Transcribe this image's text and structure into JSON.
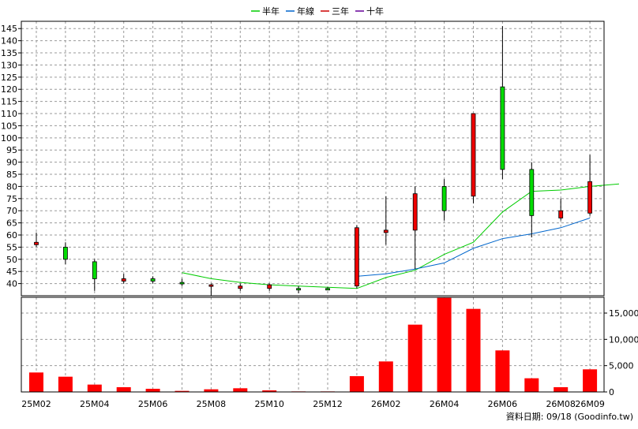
{
  "chart_data": {
    "type": "candlestick",
    "legend": [
      {
        "name": "半年",
        "color": "#00cc00"
      },
      {
        "name": "年線",
        "color": "#0066cc"
      },
      {
        "name": "三年",
        "color": "#cc0000"
      },
      {
        "name": "十年",
        "color": "#660099"
      }
    ],
    "legend_position": "top",
    "x_tick_labels": [
      "25M02",
      "25M04",
      "25M06",
      "25M08",
      "25M10",
      "25M12",
      "26M02",
      "26M04",
      "26M06",
      "26M08",
      "26M09"
    ],
    "price_axis": {
      "position": "left",
      "ticks": [
        "145",
        "140",
        "135",
        "130",
        "125",
        "120",
        "115",
        "110",
        "105",
        "100",
        "95",
        "90",
        "85",
        "80",
        "75",
        "70",
        "65",
        "60",
        "55",
        "50",
        "45",
        "40"
      ],
      "range": [
        35,
        148
      ]
    },
    "volume_axis": {
      "position": "right",
      "ticks": [
        "15,000",
        "10,000",
        "5,000",
        "0"
      ],
      "range": [
        0,
        18000
      ]
    },
    "candles": [
      {
        "period": "25M02",
        "open": 57,
        "close": 56,
        "high": 61,
        "low": 55
      },
      {
        "period": "25M03",
        "open": 50,
        "close": 55,
        "high": 57,
        "low": 48
      },
      {
        "period": "25M04",
        "open": 42,
        "close": 49,
        "high": 50,
        "low": 37
      },
      {
        "period": "25M05",
        "open": 42,
        "close": 41,
        "high": 44,
        "low": 40
      },
      {
        "period": "25M06",
        "open": 41,
        "close": 42,
        "high": 43,
        "low": 40
      },
      {
        "period": "25M07",
        "open": 40,
        "close": 40.5,
        "high": 42,
        "low": 39
      },
      {
        "period": "25M08",
        "open": 39.5,
        "close": 39,
        "high": 40,
        "low": 35
      },
      {
        "period": "25M09",
        "open": 39,
        "close": 38,
        "high": 40,
        "low": 37
      },
      {
        "period": "25M10",
        "open": 39.5,
        "close": 38,
        "high": 40,
        "low": 37
      },
      {
        "period": "25M11",
        "open": 38,
        "close": 38,
        "high": 39,
        "low": 36
      },
      {
        "period": "25M12",
        "open": 38,
        "close": 38,
        "high": 38.5,
        "low": 37.5
      },
      {
        "period": "26M01",
        "open": 63,
        "close": 39,
        "high": 64,
        "low": 38
      },
      {
        "period": "26M02",
        "open": 62,
        "close": 61,
        "high": 76,
        "low": 56
      },
      {
        "period": "26M03",
        "open": 77,
        "close": 62,
        "high": 80,
        "low": 46
      },
      {
        "period": "26M04",
        "open": 70,
        "close": 80,
        "high": 83,
        "low": 66
      },
      {
        "period": "26M05",
        "open": 110,
        "close": 76,
        "high": 110,
        "low": 73
      },
      {
        "period": "26M06",
        "open": 87,
        "close": 121,
        "high": 146,
        "low": 83
      },
      {
        "period": "26M07",
        "open": 68,
        "close": 87,
        "high": 90,
        "low": 59
      },
      {
        "period": "26M08",
        "open": 70,
        "close": 67,
        "high": 75,
        "low": 66
      },
      {
        "period": "26M09",
        "open": 82,
        "close": 69,
        "high": 93,
        "low": 68
      }
    ],
    "moving_averages": [
      {
        "name": "半年",
        "color": "#00cc00",
        "start_index": 5,
        "values": [
          44.5,
          42.0,
          40.5,
          39.5,
          39.0,
          38.5,
          38.0,
          42.5,
          45.5,
          52.0,
          57.0,
          69.5,
          78.0,
          78.5,
          80.0,
          81.0
        ]
      },
      {
        "name": "年線",
        "color": "#0066cc",
        "start_index": 11,
        "values": [
          43.0,
          44.0,
          46.0,
          48.5,
          54.5,
          58.5,
          60.5,
          63.0,
          67.0
        ]
      }
    ],
    "volume": [
      3700,
      2900,
      1400,
      900,
      600,
      200,
      500,
      700,
      300,
      100,
      100,
      3000,
      5800,
      12800,
      17900,
      15800,
      7900,
      2600,
      900,
      4300
    ],
    "footer_text": "資料日期: 09/18  (Goodinfo.tw)"
  }
}
